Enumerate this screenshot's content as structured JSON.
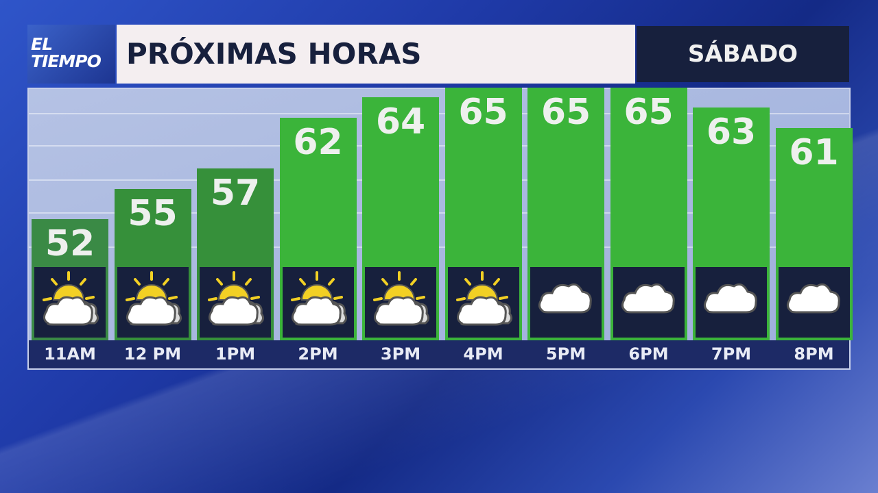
{
  "header": {
    "logo_text": "EL TIEMPO",
    "title": "PRÓXIMAS HORAS",
    "day": "SÁBADO"
  },
  "chart_data": {
    "type": "bar",
    "categories": [
      "11AM",
      "12 PM",
      "1PM",
      "2PM",
      "3PM",
      "4PM",
      "5PM",
      "6PM",
      "7PM",
      "8PM"
    ],
    "values": [
      52,
      55,
      57,
      62,
      64,
      65,
      65,
      65,
      63,
      61
    ],
    "conditions": [
      "partly-cloudy",
      "partly-cloudy",
      "partly-cloudy",
      "partly-cloudy",
      "partly-cloudy",
      "partly-cloudy",
      "cloudy",
      "cloudy",
      "cloudy",
      "cloudy"
    ],
    "bar_colors": [
      "#3a8a45",
      "#36903a",
      "#36903a",
      "#3bb43a",
      "#3bb43a",
      "#3bb43a",
      "#3bb43a",
      "#3bb43a",
      "#3bb43a",
      "#3bb43a"
    ],
    "title": "PRÓXIMAS HORAS",
    "grid": true
  }
}
